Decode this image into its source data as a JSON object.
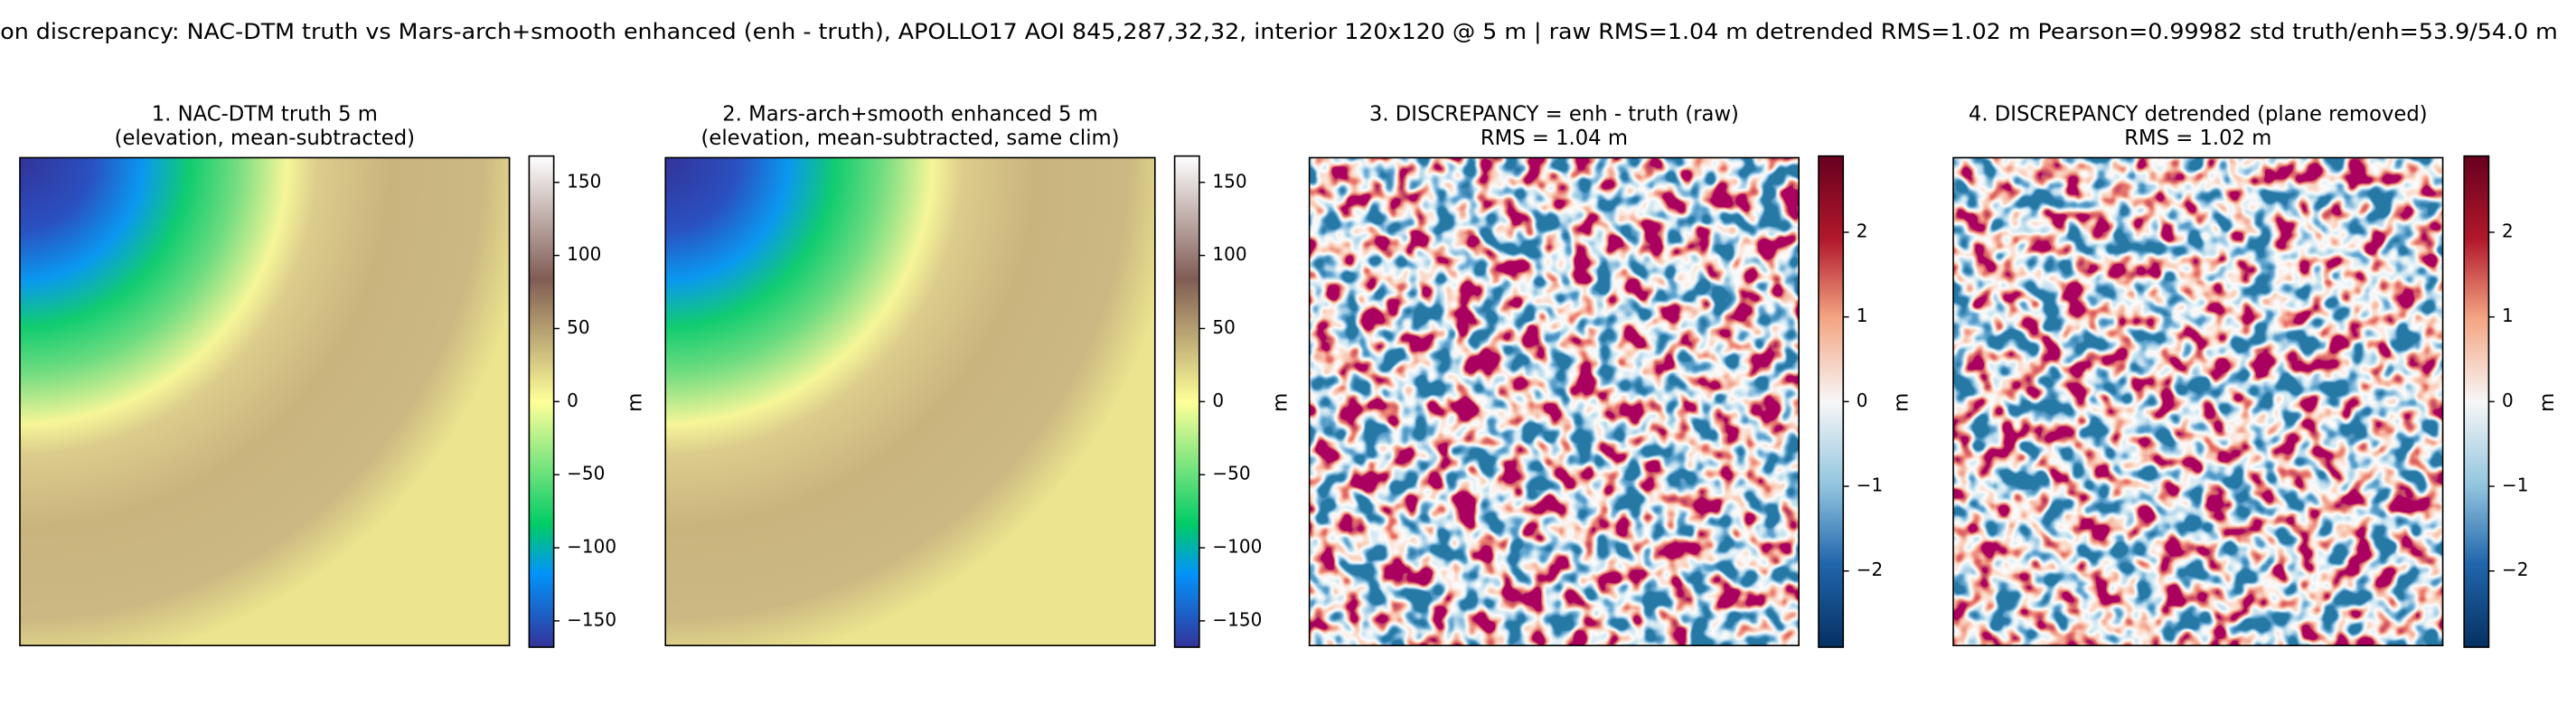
{
  "title": "on discrepancy: NAC-DTM truth vs Mars-arch+smooth enhanced (enh - truth), APOLLO17 AOI 845,287,32,32, interior 120x120 @ 5 m  |  raw RMS=1.04 m  detrended RMS=1.02 m  Pearson=0.99982  std truth/enh=53.9/54.0 m",
  "chart_data": [
    {
      "type": "heatmap",
      "title": "1. NAC-DTM truth 5 m",
      "subtitle": "(elevation, mean-subtracted)",
      "colormap": "terrain",
      "colorbar": {
        "label": "m",
        "ylim": [
          -168,
          168
        ],
        "yticks": [
          {
            "value": -150,
            "label": "−150"
          },
          {
            "value": -100,
            "label": "−100"
          },
          {
            "value": -50,
            "label": "−50"
          },
          0,
          50,
          100,
          150
        ]
      }
    },
    {
      "type": "heatmap",
      "title": "2. Mars-arch+smooth enhanced 5 m",
      "subtitle": "(elevation, mean-subtracted, same clim)",
      "colormap": "terrain",
      "colorbar": {
        "label": "m",
        "ylim": [
          -168,
          168
        ],
        "yticks": [
          {
            "value": -150,
            "label": "−150"
          },
          {
            "value": -100,
            "label": "−100"
          },
          {
            "value": -50,
            "label": "−50"
          },
          0,
          50,
          100,
          150
        ]
      }
    },
    {
      "type": "heatmap",
      "title": "3. DISCREPANCY = enh - truth (raw)",
      "subtitle": "RMS = 1.04 m",
      "colormap": "RdBu_r",
      "colorbar": {
        "label": "m",
        "ylim": [
          -2.9,
          2.9
        ],
        "yticks": [
          {
            "value": -2,
            "label": "−2"
          },
          {
            "value": -1,
            "label": "−1"
          },
          0,
          1,
          2
        ]
      }
    },
    {
      "type": "heatmap",
      "title": "4. DISCREPANCY detrended (plane removed)",
      "subtitle": "RMS = 1.02 m",
      "colormap": "RdBu_r",
      "colorbar": {
        "label": "m",
        "ylim": [
          -2.9,
          2.9
        ],
        "yticks": [
          {
            "value": -2,
            "label": "−2"
          },
          {
            "value": -1,
            "label": "−1"
          },
          0,
          1,
          2
        ]
      }
    }
  ]
}
